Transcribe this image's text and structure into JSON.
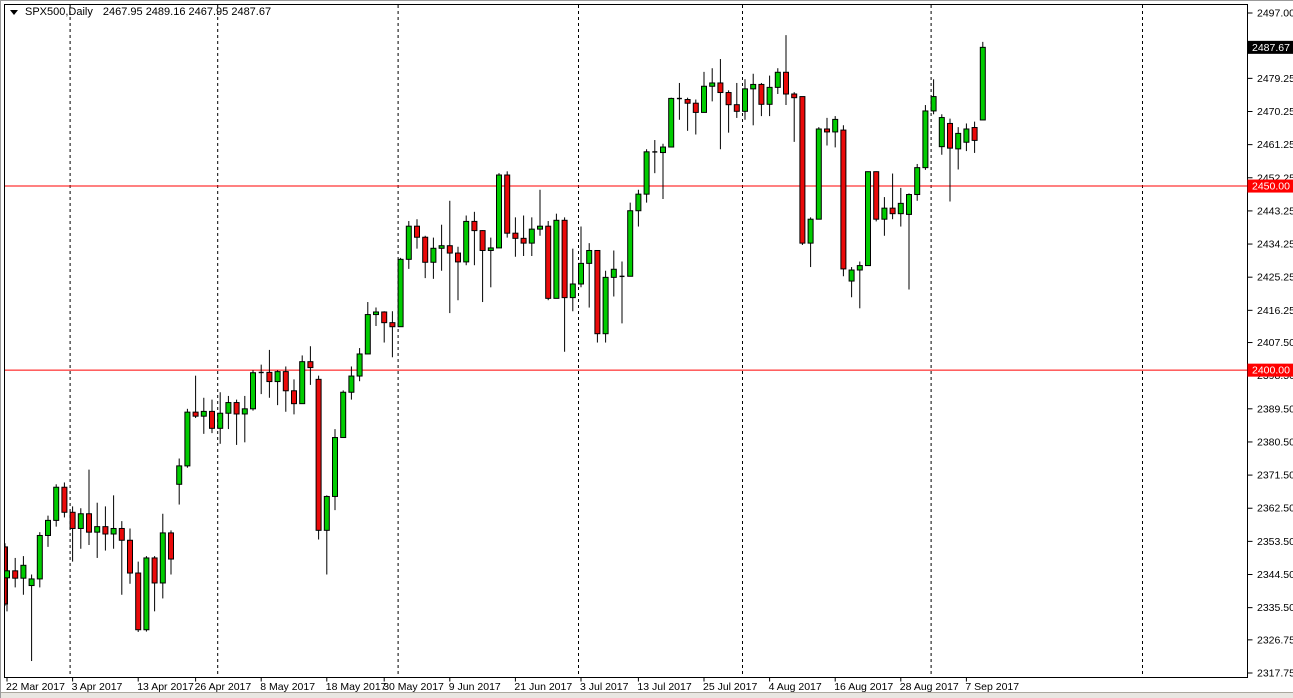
{
  "window": {
    "app": "MetaTrader chart window",
    "title_symbol": "SPX500,Daily",
    "title_quote": "2467.95 2489.16 2467.95 2487.67"
  },
  "chart_data": {
    "type": "candlestick",
    "symbol": "SPX500",
    "timeframe": "Daily",
    "last_quote": {
      "open": "2467.95",
      "high": "2489.16",
      "low": "2467.95",
      "close": "2487.67"
    },
    "y_range": [
      2317.75,
      2497.0
    ],
    "grid": "vertical-month-separators-only",
    "legend_position": "none",
    "y_labels": [
      {
        "text": "2497.00",
        "value": 2497.0
      },
      {
        "text": "2479.25",
        "value": 2479.25
      },
      {
        "text": "2470.25",
        "value": 2470.25
      },
      {
        "text": "2461.25",
        "value": 2461.25
      },
      {
        "text": "2452.25",
        "value": 2452.25
      },
      {
        "text": "2443.25",
        "value": 2443.25
      },
      {
        "text": "2434.25",
        "value": 2434.25
      },
      {
        "text": "2425.25",
        "value": 2425.25
      },
      {
        "text": "2416.25",
        "value": 2416.25
      },
      {
        "text": "2407.50",
        "value": 2407.5
      },
      {
        "text": "2398.50",
        "value": 2398.5
      },
      {
        "text": "2389.50",
        "value": 2389.5
      },
      {
        "text": "2380.50",
        "value": 2380.5
      },
      {
        "text": "2371.50",
        "value": 2371.5
      },
      {
        "text": "2362.50",
        "value": 2362.5
      },
      {
        "text": "2353.50",
        "value": 2353.5
      },
      {
        "text": "2344.50",
        "value": 2344.5
      },
      {
        "text": "2335.50",
        "value": 2335.5
      },
      {
        "text": "2326.75",
        "value": 2326.75
      },
      {
        "text": "2317.75",
        "value": 2317.75
      }
    ],
    "x_labels": [
      {
        "text": "22 Mar 2017",
        "candle_index": 0
      },
      {
        "text": "3 Apr 2017",
        "candle_index": 8
      },
      {
        "text": "13 Apr 2017",
        "candle_index": 16
      },
      {
        "text": "26 Apr 2017",
        "candle_index": 23
      },
      {
        "text": "8 May 2017",
        "candle_index": 31
      },
      {
        "text": "18 May 2017",
        "candle_index": 39
      },
      {
        "text": "30 May 2017",
        "candle_index": 46
      },
      {
        "text": "9 Jun 2017",
        "candle_index": 54
      },
      {
        "text": "21 Jun 2017",
        "candle_index": 62
      },
      {
        "text": "3 Jul 2017",
        "candle_index": 70
      },
      {
        "text": "13 Jul 2017",
        "candle_index": 77
      },
      {
        "text": "25 Jul 2017",
        "candle_index": 85
      },
      {
        "text": "4 Aug 2017",
        "candle_index": 93
      },
      {
        "text": "16 Aug 2017",
        "candle_index": 101
      },
      {
        "text": "28 Aug 2017",
        "candle_index": 109
      },
      {
        "text": "7 Sep 2017",
        "candle_index": 117
      }
    ],
    "separator_candle_indices": [
      8,
      26,
      48,
      70,
      90,
      113
    ],
    "extra_separator_x": 1141,
    "hlines": [
      {
        "price": 2450.0,
        "label": "2450.00"
      },
      {
        "price": 2400.0,
        "label": "2400.00"
      }
    ],
    "current_price": {
      "value": 2487.67,
      "label": "2487.67"
    },
    "clipped_first_candle": [
      2352.0,
      2353.0,
      2336.0,
      2336.5
    ],
    "candles_ohlc": [
      [
        2343.6,
        2352.0,
        2334.5,
        2345.5
      ],
      [
        2345.5,
        2349.0,
        2341.0,
        2343.5
      ],
      [
        2343.5,
        2349.5,
        2339.0,
        2347.0
      ],
      [
        2341.5,
        2344.5,
        2321.0,
        2343.3
      ],
      [
        2343.3,
        2356.0,
        2341.0,
        2355.1
      ],
      [
        2355.1,
        2360.5,
        2352.0,
        2359.2
      ],
      [
        2359.2,
        2369.0,
        2357.5,
        2368.2
      ],
      [
        2368.2,
        2369.5,
        2360.0,
        2361.4
      ],
      [
        2361.4,
        2363.0,
        2348.0,
        2357.0
      ],
      [
        2357.0,
        2362.5,
        2351.5,
        2361.0
      ],
      [
        2361.0,
        2373.0,
        2352.5,
        2356.0
      ],
      [
        2356.0,
        2364.0,
        2349.0,
        2357.5
      ],
      [
        2357.5,
        2363.0,
        2351.0,
        2355.5
      ],
      [
        2355.5,
        2366.0,
        2351.5,
        2357.0
      ],
      [
        2357.0,
        2359.0,
        2339.0,
        2353.8
      ],
      [
        2353.8,
        2357.0,
        2342.0,
        2344.9
      ],
      [
        2344.9,
        2348.0,
        2328.9,
        2329.5
      ],
      [
        2329.5,
        2349.5,
        2329.0,
        2349.0
      ],
      [
        2349.0,
        2349.5,
        2334.5,
        2342.2
      ],
      [
        2342.2,
        2361.0,
        2338.0,
        2355.8
      ],
      [
        2355.8,
        2356.5,
        2344.5,
        2348.7
      ],
      [
        2369.0,
        2376.0,
        2363.5,
        2374.0
      ],
      [
        2374.0,
        2389.5,
        2373.5,
        2388.6
      ],
      [
        2388.6,
        2398.5,
        2387.0,
        2387.5
      ],
      [
        2387.5,
        2392.5,
        2382.7,
        2388.8
      ],
      [
        2388.8,
        2392.0,
        2382.9,
        2384.2
      ],
      [
        2384.2,
        2394.0,
        2380.0,
        2388.3
      ],
      [
        2388.3,
        2393.0,
        2384.0,
        2391.2
      ],
      [
        2391.2,
        2392.0,
        2379.7,
        2388.1
      ],
      [
        2388.1,
        2393.0,
        2380.4,
        2389.5
      ],
      [
        2389.5,
        2400.0,
        2389.0,
        2399.3
      ],
      [
        2399.3,
        2401.5,
        2393.5,
        2399.4
      ],
      [
        2399.4,
        2405.5,
        2392.5,
        2396.9
      ],
      [
        2396.9,
        2400.0,
        2390.5,
        2399.6
      ],
      [
        2399.6,
        2401.0,
        2388.7,
        2394.4
      ],
      [
        2394.4,
        2397.5,
        2388.0,
        2390.9
      ],
      [
        2390.9,
        2404.0,
        2390.9,
        2402.3
      ],
      [
        2402.3,
        2406.5,
        2396.0,
        2400.7
      ],
      [
        2397.5,
        2398.5,
        2354.0,
        2356.5
      ],
      [
        2356.5,
        2366.0,
        2344.5,
        2365.7
      ],
      [
        2365.7,
        2384.0,
        2362.0,
        2381.7
      ],
      [
        2381.7,
        2394.5,
        2381.7,
        2394.0
      ],
      [
        2394.0,
        2401.0,
        2392.0,
        2398.4
      ],
      [
        2398.4,
        2406.0,
        2397.0,
        2404.4
      ],
      [
        2404.4,
        2418.5,
        2404.4,
        2415.1
      ],
      [
        2415.1,
        2417.0,
        2412.0,
        2415.8
      ],
      [
        2415.8,
        2416.0,
        2407.5,
        2412.9
      ],
      [
        2412.9,
        2416.0,
        2403.5,
        2411.8
      ],
      [
        2411.8,
        2430.5,
        2411.8,
        2430.1
      ],
      [
        2430.1,
        2440.5,
        2427.5,
        2439.1
      ],
      [
        2439.1,
        2441.0,
        2433.0,
        2436.1
      ],
      [
        2436.1,
        2436.5,
        2425.0,
        2429.3
      ],
      [
        2429.3,
        2436.0,
        2424.8,
        2433.1
      ],
      [
        2433.1,
        2439.5,
        2427.0,
        2433.8
      ],
      [
        2433.8,
        2446.0,
        2415.5,
        2431.8
      ],
      [
        2431.8,
        2433.5,
        2419.0,
        2429.4
      ],
      [
        2429.4,
        2442.0,
        2428.5,
        2440.4
      ],
      [
        2440.4,
        2443.0,
        2428.5,
        2437.9
      ],
      [
        2437.9,
        2438.0,
        2418.5,
        2432.5
      ],
      [
        2432.5,
        2436.0,
        2422.5,
        2433.2
      ],
      [
        2433.2,
        2453.5,
        2433.2,
        2453.0
      ],
      [
        2453.0,
        2454.0,
        2436.0,
        2437.2
      ],
      [
        2437.2,
        2441.5,
        2430.8,
        2435.8
      ],
      [
        2435.8,
        2442.0,
        2431.0,
        2434.5
      ],
      [
        2434.5,
        2441.5,
        2431.0,
        2438.3
      ],
      [
        2438.3,
        2449.0,
        2436.5,
        2439.1
      ],
      [
        2439.1,
        2440.5,
        2419.0,
        2419.5
      ],
      [
        2419.5,
        2442.5,
        2419.5,
        2440.7
      ],
      [
        2440.7,
        2441.5,
        2405.0,
        2419.7
      ],
      [
        2419.7,
        2433.0,
        2416.0,
        2423.4
      ],
      [
        2423.4,
        2439.0,
        2422.5,
        2429.0
      ],
      [
        2429.0,
        2434.5,
        2417.0,
        2432.5
      ],
      [
        2432.5,
        2432.5,
        2407.5,
        2409.9
      ],
      [
        2409.9,
        2427.0,
        2407.5,
        2425.2
      ],
      [
        2425.2,
        2432.5,
        2420.0,
        2427.4
      ],
      [
        2425.5,
        2429.5,
        2412.7,
        2425.5
      ],
      [
        2425.5,
        2445.5,
        2425.5,
        2443.3
      ],
      [
        2443.3,
        2449.0,
        2439.0,
        2447.8
      ],
      [
        2447.8,
        2460.0,
        2445.5,
        2459.3
      ],
      [
        2459.3,
        2462.5,
        2453.5,
        2459.1
      ],
      [
        2459.1,
        2461.5,
        2446.5,
        2460.6
      ],
      [
        2460.6,
        2474.0,
        2460.6,
        2473.8
      ],
      [
        2473.8,
        2478.0,
        2468.0,
        2473.5
      ],
      [
        2473.5,
        2474.0,
        2465.0,
        2472.5
      ],
      [
        2472.5,
        2473.5,
        2464.0,
        2470.0
      ],
      [
        2470.0,
        2481.0,
        2470.0,
        2477.1
      ],
      [
        2477.1,
        2482.0,
        2473.0,
        2478.0
      ],
      [
        2478.0,
        2484.5,
        2460.0,
        2475.4
      ],
      [
        2475.4,
        2476.0,
        2464.5,
        2472.1
      ],
      [
        2472.1,
        2478.0,
        2468.5,
        2470.3
      ],
      [
        2470.3,
        2479.0,
        2468.0,
        2476.4
      ],
      [
        2476.4,
        2480.5,
        2466.5,
        2477.6
      ],
      [
        2477.6,
        2478.0,
        2469.0,
        2472.2
      ],
      [
        2472.2,
        2480.0,
        2469.0,
        2476.8
      ],
      [
        2476.8,
        2482.0,
        2475.0,
        2480.9
      ],
      [
        2480.9,
        2491.0,
        2472.0,
        2475.0
      ],
      [
        2475.0,
        2475.5,
        2462.0,
        2474.0
      ],
      [
        2474.3,
        2474.3,
        2434.0,
        2434.5
      ],
      [
        2434.5,
        2441.5,
        2428.0,
        2441.0
      ],
      [
        2441.0,
        2466.0,
        2441.0,
        2465.5
      ],
      [
        2465.5,
        2468.5,
        2461.0,
        2464.7
      ],
      [
        2464.7,
        2469.0,
        2460.5,
        2468.1
      ],
      [
        2465.2,
        2466.5,
        2425.5,
        2427.5
      ],
      [
        2424.2,
        2428.0,
        2419.8,
        2427.2
      ],
      [
        2427.2,
        2429.5,
        2416.8,
        2428.4
      ],
      [
        2428.4,
        2454.0,
        2428.4,
        2453.9
      ],
      [
        2453.9,
        2454.0,
        2440.4,
        2441.0
      ],
      [
        2441.0,
        2447.0,
        2436.5,
        2444.0
      ],
      [
        2444.0,
        2453.4,
        2441.0,
        2442.5
      ],
      [
        2442.5,
        2449.5,
        2439.0,
        2445.3
      ],
      [
        2442.3,
        2448.0,
        2421.9,
        2447.7
      ],
      [
        2447.7,
        2456.0,
        2446.0,
        2455.0
      ],
      [
        2455.0,
        2472.0,
        2454.4,
        2470.4
      ],
      [
        2470.4,
        2479.0,
        2469.5,
        2474.3
      ],
      [
        2460.7,
        2469.5,
        2458.5,
        2468.6
      ],
      [
        2467.0,
        2468.3,
        2445.8,
        2460.3
      ],
      [
        2460.1,
        2466.0,
        2454.5,
        2464.3
      ],
      [
        2461.9,
        2467.0,
        2459.5,
        2465.5
      ],
      [
        2465.9,
        2467.5,
        2459.0,
        2462.4
      ],
      [
        2467.95,
        2489.16,
        2467.95,
        2487.67
      ]
    ]
  },
  "colors": {
    "up_candle": "#00CC00",
    "down_candle": "#EA0A0A",
    "wick": "#000000",
    "border": "#000000",
    "hline": "#FF0000",
    "hline_badge_bg": "#FF0000",
    "current_badge_bg": "#000000",
    "badge_text": "#FFFFFF",
    "axis_text": "#000000",
    "separator": "#000000",
    "plot_bg": "#FFFFFF"
  }
}
